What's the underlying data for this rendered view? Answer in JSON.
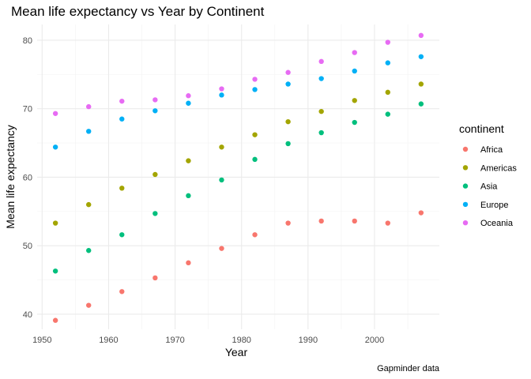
{
  "chart_data": {
    "type": "scatter",
    "title": "Mean life expectancy vs Year by Continent",
    "xlabel": "Year",
    "ylabel": "Mean life expectancy",
    "caption": "Gapminder data",
    "xlim": [
      1949.25,
      2009.75
    ],
    "ylim": [
      37.8,
      82.3
    ],
    "x_ticks": [
      1950,
      1960,
      1970,
      1980,
      1990,
      2000
    ],
    "y_ticks": [
      40,
      50,
      60,
      70,
      80
    ],
    "grid": true,
    "legend": {
      "title": "continent",
      "placement": "right"
    },
    "x": [
      1952,
      1957,
      1962,
      1967,
      1972,
      1977,
      1982,
      1987,
      1992,
      1997,
      2002,
      2007
    ],
    "series": [
      {
        "name": "Africa",
        "color": "#F8766D",
        "values": [
          39.1,
          41.3,
          43.3,
          45.3,
          47.5,
          49.6,
          51.6,
          53.3,
          53.6,
          53.6,
          53.3,
          54.8
        ]
      },
      {
        "name": "Americas",
        "color": "#A3A500",
        "values": [
          53.3,
          56.0,
          58.4,
          60.4,
          62.4,
          64.4,
          66.2,
          68.1,
          69.6,
          71.2,
          72.4,
          73.6
        ]
      },
      {
        "name": "Asia",
        "color": "#00BF7D",
        "values": [
          46.3,
          49.3,
          51.6,
          54.7,
          57.3,
          59.6,
          62.6,
          64.9,
          66.5,
          68.0,
          69.2,
          70.7
        ]
      },
      {
        "name": "Europe",
        "color": "#00B0F6",
        "values": [
          64.4,
          66.7,
          68.5,
          69.7,
          70.8,
          72.0,
          72.8,
          73.6,
          74.4,
          75.5,
          76.7,
          77.6
        ]
      },
      {
        "name": "Oceania",
        "color": "#E76BF3",
        "values": [
          69.3,
          70.3,
          71.1,
          71.3,
          71.9,
          72.9,
          74.3,
          75.3,
          76.9,
          78.2,
          79.7,
          80.7
        ]
      }
    ]
  }
}
